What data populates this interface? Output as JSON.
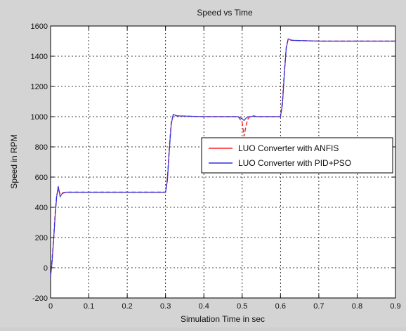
{
  "chart_data": {
    "type": "line",
    "title": "Speed vs Time",
    "xlabel": "Simulation Time in sec",
    "ylabel": "Speed in RPM",
    "xlim": [
      0,
      0.9
    ],
    "ylim": [
      -200,
      1600
    ],
    "xticks": [
      0,
      0.1,
      0.2,
      0.3,
      0.4,
      0.5,
      0.6,
      0.7,
      0.8,
      0.9
    ],
    "xtick_labels": [
      "0",
      "0.1",
      "0.2",
      "0.3",
      "0.4",
      "0.5",
      "0.6",
      "0.7",
      "0.8",
      "0.9"
    ],
    "yticks": [
      -200,
      0,
      200,
      400,
      600,
      800,
      1000,
      1200,
      1400,
      1600
    ],
    "ytick_labels": [
      "-200",
      "0",
      "200",
      "400",
      "600",
      "800",
      "1000",
      "1200",
      "1400",
      "1600"
    ],
    "grid": true,
    "legend_position": "center-right",
    "series": [
      {
        "name": "LUO Converter with ANFIS",
        "color": "#ff2020",
        "x": [
          0,
          0.004,
          0.008,
          0.012,
          0.016,
          0.02,
          0.025,
          0.03,
          0.04,
          0.1,
          0.2,
          0.3,
          0.305,
          0.31,
          0.315,
          0.32,
          0.33,
          0.4,
          0.49,
          0.5,
          0.505,
          0.51,
          0.515,
          0.52,
          0.53,
          0.54,
          0.6,
          0.605,
          0.61,
          0.615,
          0.62,
          0.63,
          0.7,
          0.8,
          0.9
        ],
        "y": [
          -60,
          60,
          200,
          360,
          480,
          520,
          490,
          495,
          500,
          500,
          500,
          500,
          600,
          800,
          960,
          1010,
          1005,
          1000,
          1000,
          960,
          870,
          940,
          985,
          1000,
          1005,
          1000,
          1000,
          1100,
          1300,
          1460,
          1510,
          1505,
          1500,
          1500,
          1500
        ]
      },
      {
        "name": "LUO Converter with PID+PSO",
        "color": "#3030e0",
        "x": [
          0,
          0.004,
          0.008,
          0.012,
          0.016,
          0.02,
          0.025,
          0.03,
          0.04,
          0.1,
          0.2,
          0.3,
          0.305,
          0.31,
          0.315,
          0.32,
          0.33,
          0.4,
          0.49,
          0.5,
          0.505,
          0.51,
          0.515,
          0.52,
          0.53,
          0.54,
          0.6,
          0.605,
          0.61,
          0.615,
          0.62,
          0.63,
          0.7,
          0.8,
          0.9
        ],
        "y": [
          -60,
          40,
          190,
          340,
          470,
          540,
          470,
          490,
          500,
          500,
          500,
          500,
          580,
          780,
          950,
          1015,
          1005,
          1000,
          1000,
          985,
          975,
          990,
          998,
          1000,
          1002,
          1000,
          1000,
          1080,
          1280,
          1450,
          1515,
          1505,
          1500,
          1500,
          1500
        ]
      }
    ]
  }
}
